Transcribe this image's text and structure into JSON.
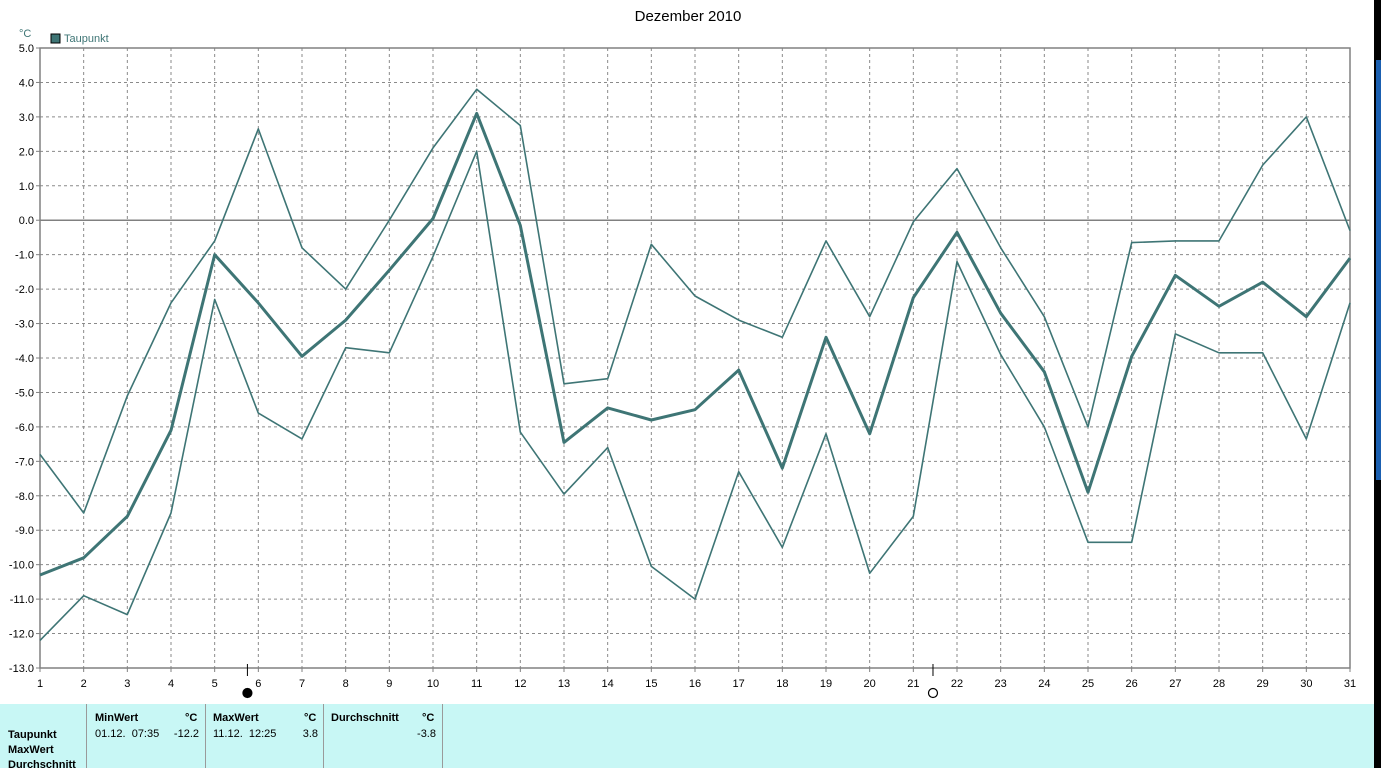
{
  "chart_data": {
    "type": "line",
    "title": "Dezember 2010",
    "ylabel": "°C",
    "legend": [
      {
        "label": "Taupunkt",
        "color": "#3e7575"
      }
    ],
    "ylim": [
      -13.0,
      5.0
    ],
    "y_ticks": [
      "5.0",
      "4.0",
      "3.0",
      "2.0",
      "1.0",
      "0.0",
      "-1.0",
      "-2.0",
      "-3.0",
      "-4.0",
      "-5.0",
      "-6.0",
      "-7.0",
      "-8.0",
      "-9.0",
      "-10.0",
      "-11.0",
      "-12.0",
      "-13.0"
    ],
    "x": [
      1,
      2,
      3,
      4,
      5,
      6,
      7,
      8,
      9,
      10,
      11,
      12,
      13,
      14,
      15,
      16,
      17,
      18,
      19,
      20,
      21,
      22,
      23,
      24,
      25,
      26,
      27,
      28,
      29,
      30,
      31
    ],
    "series": [
      {
        "role": "max",
        "values": [
          -6.8,
          -8.5,
          -5.1,
          -2.4,
          -0.6,
          2.65,
          -0.8,
          -2.0,
          0.0,
          2.1,
          3.8,
          2.75,
          -4.75,
          -4.6,
          -0.7,
          -2.2,
          -2.9,
          -3.4,
          -0.6,
          -2.8,
          -0.05,
          1.5,
          -0.8,
          -2.8,
          -6.0,
          -0.65,
          -0.6,
          -0.6,
          1.6,
          3.0,
          -0.3
        ]
      },
      {
        "role": "avg",
        "values": [
          -10.3,
          -9.8,
          -8.6,
          -6.1,
          -1.0,
          -2.4,
          -3.95,
          -2.9,
          -1.45,
          0.05,
          3.1,
          -0.15,
          -6.45,
          -5.45,
          -5.8,
          -5.5,
          -4.35,
          -7.2,
          -3.4,
          -6.2,
          -2.25,
          -0.35,
          -2.7,
          -4.4,
          -7.9,
          -3.95,
          -1.6,
          -2.5,
          -1.8,
          -2.8,
          -1.1
        ]
      },
      {
        "role": "min",
        "values": [
          -12.2,
          -10.9,
          -11.45,
          -8.5,
          -2.3,
          -5.6,
          -6.35,
          -3.7,
          -3.85,
          -1.05,
          2.0,
          -6.15,
          -7.95,
          -6.6,
          -10.05,
          -11.0,
          -7.3,
          -9.5,
          -6.2,
          -10.25,
          -8.6,
          -1.2,
          -3.9,
          -6.0,
          -9.35,
          -9.35,
          -3.3,
          -3.85,
          -3.85,
          -6.35,
          -2.4
        ]
      }
    ],
    "grid": true,
    "moon_phases": [
      {
        "day_after": 5.75,
        "symbol": "●"
      },
      {
        "day_after": 21.45,
        "symbol": "○"
      }
    ]
  },
  "stats": {
    "row_labels": [
      "Taupunkt",
      "MaxWert",
      "Durchschnitt"
    ],
    "unit": "°C",
    "columns": [
      {
        "header": "MinWert",
        "datetime": "01.12.  07:35",
        "value": "-12.2"
      },
      {
        "header": "MaxWert",
        "datetime": "11.12.  12:25",
        "value": "3.8"
      },
      {
        "header": "Durchschnitt",
        "datetime": "",
        "value": "-3.8"
      }
    ]
  },
  "colors": {
    "line": "#3e7575",
    "axis": "#808080",
    "grid": "#888888",
    "panel": "#c8f7f5"
  }
}
